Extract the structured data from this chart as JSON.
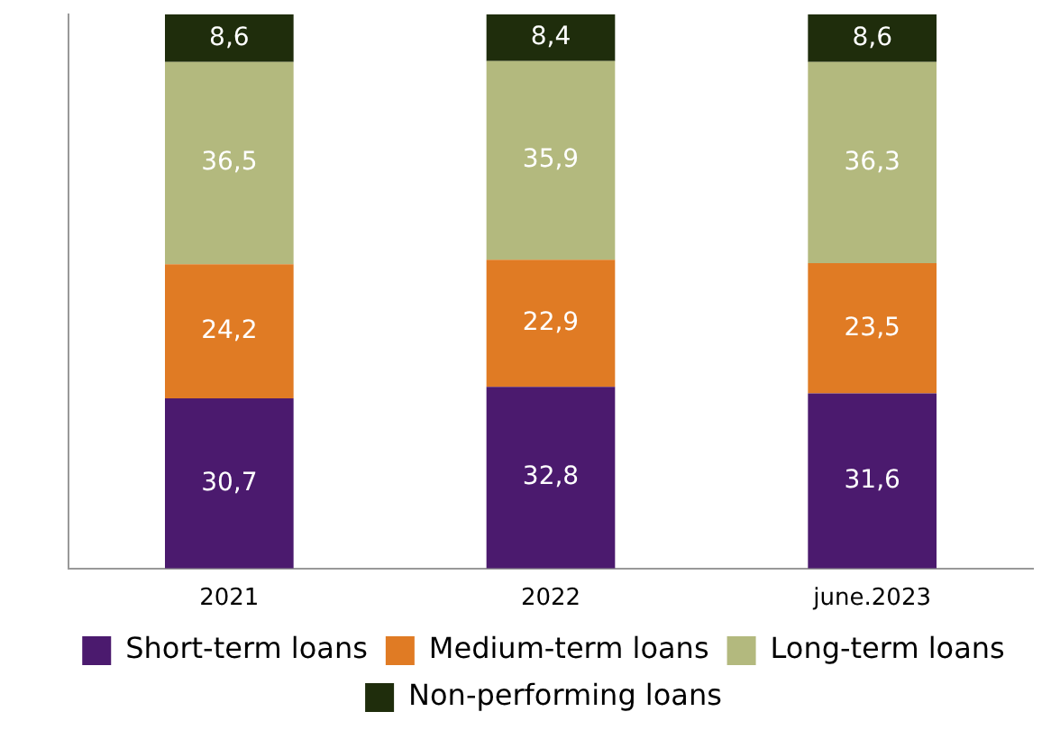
{
  "chart_data": {
    "type": "bar",
    "stacked": true,
    "categories": [
      "2021",
      "2022",
      "june.2023"
    ],
    "series": [
      {
        "name": "Short-term loans",
        "color": "#4b1a6e",
        "values": [
          30.7,
          32.8,
          31.6
        ],
        "value_labels": [
          "30,7",
          "32,8",
          "31,6"
        ]
      },
      {
        "name": "Medium-term loans",
        "color": "#e07b24",
        "values": [
          24.2,
          22.9,
          23.5
        ],
        "value_labels": [
          "24,2",
          "22,9",
          "23,5"
        ]
      },
      {
        "name": "Long-term loans",
        "color": "#b3b97e",
        "values": [
          36.5,
          35.9,
          36.3
        ],
        "value_labels": [
          "36,5",
          "35,9",
          "36,3"
        ]
      },
      {
        "name": "Non-performing loans",
        "color": "#1f2d0c",
        "values": [
          8.6,
          8.4,
          8.6
        ],
        "value_labels": [
          "8,6",
          "8,4",
          "8,6"
        ]
      }
    ],
    "ylim": [
      0,
      100
    ],
    "tick_labels": "x",
    "grid": false,
    "legend": "bottom"
  }
}
